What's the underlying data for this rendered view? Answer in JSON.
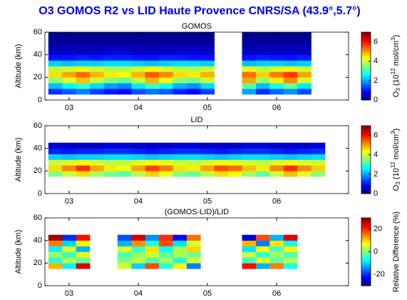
{
  "title": "O3 GOMOS R2 vs LID Haute Provence CNRS/SA (43.9°,5.7°)",
  "chart_data": [
    {
      "type": "heatmap",
      "title": "GOMOS",
      "ylabel": "Altitude (km)",
      "colormap": "jet",
      "xlim": [
        2002.65,
        2007.04
      ],
      "ylim": [
        0,
        60
      ],
      "xticks": [
        {
          "value": 2003,
          "label": "03"
        },
        {
          "value": 2004,
          "label": "04"
        },
        {
          "value": 2005,
          "label": "05"
        },
        {
          "value": 2006,
          "label": "06"
        }
      ],
      "yticks": [
        0,
        20,
        40,
        60
      ],
      "clim": [
        0,
        7
      ],
      "cticks": [
        0,
        2,
        4,
        6
      ],
      "colorbar_label": [
        "O",
        "3",
        " (10",
        "12",
        " mol/cm",
        "3",
        ")"
      ],
      "x_bins": [
        2002.7,
        2002.9,
        2003.1,
        2003.3,
        2003.5,
        2003.7,
        2003.9,
        2004.1,
        2004.3,
        2004.5,
        2004.7,
        2004.9,
        2005.1,
        2005.3,
        2005.5,
        2005.7,
        2005.9,
        2006.1,
        2006.3,
        2006.5,
        2006.7
      ],
      "y_bins": [
        5,
        10,
        15,
        20,
        25,
        30,
        35,
        40,
        45,
        50,
        55,
        60
      ],
      "z": [
        [
          1.2,
          1.5,
          1.8,
          1.3,
          1.0,
          0.9,
          1.4,
          1.7,
          1.5,
          1.1,
          0.9,
          1.3,
          null,
          null,
          2.0,
          1.2,
          1.6,
          1.9,
          1.4,
          null
        ],
        [
          2.2,
          2.6,
          3.0,
          2.4,
          2.0,
          1.8,
          2.5,
          3.1,
          2.7,
          2.1,
          1.9,
          2.4,
          null,
          null,
          3.3,
          2.2,
          2.8,
          3.4,
          2.5,
          null
        ],
        [
          3.6,
          4.2,
          4.8,
          4.0,
          3.5,
          3.3,
          4.0,
          4.9,
          4.4,
          3.6,
          3.4,
          4.0,
          null,
          null,
          5.0,
          3.7,
          4.5,
          5.2,
          4.1,
          null
        ],
        [
          4.6,
          5.0,
          5.4,
          4.9,
          4.5,
          4.4,
          4.9,
          5.5,
          5.2,
          4.6,
          4.5,
          4.9,
          null,
          null,
          5.4,
          4.7,
          5.3,
          5.7,
          5.0,
          null
        ],
        [
          3.9,
          4.0,
          4.2,
          4.0,
          3.8,
          3.8,
          4.0,
          4.3,
          4.1,
          3.9,
          3.8,
          4.0,
          null,
          null,
          4.2,
          3.9,
          4.1,
          4.3,
          4.0,
          null
        ],
        [
          2.3,
          2.2,
          2.3,
          2.3,
          2.4,
          2.4,
          2.3,
          2.2,
          2.3,
          2.4,
          2.4,
          2.3,
          null,
          null,
          2.2,
          2.3,
          2.3,
          2.2,
          2.3,
          null
        ],
        [
          1.0,
          1.0,
          1.1,
          1.0,
          1.1,
          1.1,
          1.0,
          1.0,
          1.1,
          1.1,
          1.0,
          1.0,
          null,
          null,
          1.0,
          1.1,
          1.0,
          1.0,
          1.1,
          null
        ],
        [
          0.5,
          0.5,
          0.5,
          0.5,
          0.6,
          0.6,
          0.5,
          0.5,
          0.5,
          0.6,
          0.6,
          0.5,
          null,
          null,
          0.5,
          0.5,
          0.5,
          0.5,
          0.5,
          null
        ],
        [
          0.3,
          0.3,
          0.3,
          0.3,
          0.3,
          0.3,
          0.3,
          0.3,
          0.3,
          0.3,
          0.3,
          0.3,
          null,
          null,
          0.3,
          0.3,
          0.3,
          0.3,
          0.3,
          null
        ],
        [
          0.2,
          0.2,
          0.2,
          0.2,
          0.2,
          0.2,
          0.2,
          0.2,
          0.2,
          0.2,
          0.2,
          0.2,
          null,
          null,
          0.2,
          0.2,
          0.2,
          0.2,
          0.2,
          null
        ],
        [
          0.1,
          0.1,
          0.1,
          0.1,
          0.1,
          0.1,
          0.1,
          0.1,
          0.1,
          0.1,
          0.1,
          0.1,
          null,
          null,
          0.1,
          0.1,
          0.1,
          0.1,
          0.1,
          null
        ]
      ]
    },
    {
      "type": "heatmap",
      "title": "LID",
      "ylabel": "Altitude (km)",
      "colormap": "jet",
      "xlim": [
        2002.65,
        2007.04
      ],
      "ylim": [
        0,
        60
      ],
      "xticks": [
        {
          "value": 2003,
          "label": "03"
        },
        {
          "value": 2004,
          "label": "04"
        },
        {
          "value": 2005,
          "label": "05"
        },
        {
          "value": 2006,
          "label": "06"
        }
      ],
      "yticks": [
        0,
        20,
        40,
        60
      ],
      "clim": [
        0,
        7
      ],
      "cticks": [
        0,
        2,
        4,
        6
      ],
      "colorbar_label": [
        "O",
        "3",
        " (10",
        "12",
        " mol/cm",
        "3",
        ")"
      ],
      "x_bins": [
        2002.7,
        2002.9,
        2003.1,
        2003.3,
        2003.5,
        2003.7,
        2003.9,
        2004.1,
        2004.3,
        2004.5,
        2004.7,
        2004.9,
        2005.1,
        2005.3,
        2005.5,
        2005.7,
        2005.9,
        2006.1,
        2006.3,
        2006.5,
        2006.7
      ],
      "y_bins": [
        15,
        20,
        25,
        30,
        35,
        40,
        45
      ],
      "z": [
        [
          3.5,
          4.0,
          4.6,
          3.8,
          3.4,
          3.2,
          3.9,
          4.7,
          4.3,
          3.5,
          3.3,
          3.9,
          4.6,
          4.4,
          3.7,
          3.3,
          4.0,
          4.8,
          4.2,
          3.6
        ],
        [
          4.6,
          5.2,
          5.8,
          5.0,
          4.5,
          4.4,
          5.0,
          5.7,
          5.3,
          4.6,
          4.5,
          5.0,
          5.6,
          5.4,
          4.8,
          4.5,
          5.2,
          5.8,
          5.2,
          4.7
        ],
        [
          4.0,
          4.1,
          4.3,
          4.1,
          3.9,
          3.9,
          4.1,
          4.3,
          4.2,
          4.0,
          3.9,
          4.1,
          4.3,
          4.2,
          4.0,
          3.9,
          4.1,
          4.3,
          4.1,
          4.0
        ],
        [
          2.3,
          2.2,
          2.3,
          2.3,
          2.4,
          2.4,
          2.3,
          2.2,
          2.3,
          2.4,
          2.4,
          2.3,
          2.2,
          2.3,
          2.4,
          2.4,
          2.3,
          2.2,
          2.3,
          2.4
        ],
        [
          1.1,
          1.0,
          1.1,
          1.1,
          1.2,
          1.2,
          1.1,
          1.0,
          1.1,
          1.2,
          1.2,
          1.1,
          1.0,
          1.1,
          1.2,
          1.2,
          1.1,
          1.0,
          1.1,
          1.2
        ],
        [
          0.5,
          0.5,
          0.5,
          0.5,
          0.6,
          0.6,
          0.5,
          0.5,
          0.5,
          0.6,
          0.6,
          0.5,
          0.5,
          0.5,
          0.6,
          0.6,
          0.5,
          0.5,
          0.5,
          0.6
        ]
      ]
    },
    {
      "type": "heatmap",
      "title": "(GOMOS-LID)/LID",
      "ylabel": "Altitude (km)",
      "colormap": "jet",
      "xlim": [
        2002.65,
        2007.04
      ],
      "ylim": [
        0,
        60
      ],
      "xticks": [
        {
          "value": 2003,
          "label": "03"
        },
        {
          "value": 2004,
          "label": "04"
        },
        {
          "value": 2005,
          "label": "05"
        },
        {
          "value": 2006,
          "label": "06"
        }
      ],
      "yticks": [
        0,
        20,
        40,
        60
      ],
      "clim": [
        -30,
        30
      ],
      "cticks": [
        -20,
        0,
        20
      ],
      "colorbar_label": [
        "Relative Difference (%)"
      ],
      "x_bins": [
        2002.7,
        2002.9,
        2003.1,
        2003.3,
        2003.5,
        2003.7,
        2003.9,
        2004.1,
        2004.3,
        2004.5,
        2004.7,
        2004.9,
        2005.1,
        2005.3,
        2005.5,
        2005.7,
        2005.9,
        2006.1,
        2006.3,
        2006.5,
        2006.7
      ],
      "y_bins": [
        15,
        20,
        25,
        30,
        35,
        40,
        45
      ],
      "z": [
        [
          12,
          -8,
          25,
          null,
          null,
          5,
          -10,
          18,
          -5,
          8,
          -15,
          null,
          null,
          null,
          22,
          -12,
          15,
          -6,
          null,
          null
        ],
        [
          -5,
          3,
          -2,
          null,
          null,
          0,
          4,
          -3,
          2,
          -6,
          5,
          null,
          null,
          null,
          -4,
          6,
          -2,
          3,
          null,
          null
        ],
        [
          2,
          -4,
          6,
          null,
          null,
          -3,
          1,
          5,
          -2,
          3,
          -1,
          null,
          null,
          null,
          4,
          -5,
          2,
          -3,
          null,
          null
        ],
        [
          -8,
          5,
          -12,
          null,
          null,
          6,
          -4,
          9,
          -7,
          2,
          10,
          null,
          null,
          null,
          -9,
          7,
          -3,
          8,
          null,
          null
        ],
        [
          15,
          -10,
          8,
          null,
          null,
          -12,
          14,
          -6,
          18,
          -9,
          5,
          null,
          null,
          null,
          12,
          -15,
          9,
          -7,
          null,
          null
        ],
        [
          28,
          -20,
          22,
          null,
          null,
          -18,
          25,
          -14,
          20,
          -22,
          16,
          null,
          null,
          null,
          -25,
          18,
          -12,
          24,
          null,
          null
        ]
      ]
    }
  ]
}
